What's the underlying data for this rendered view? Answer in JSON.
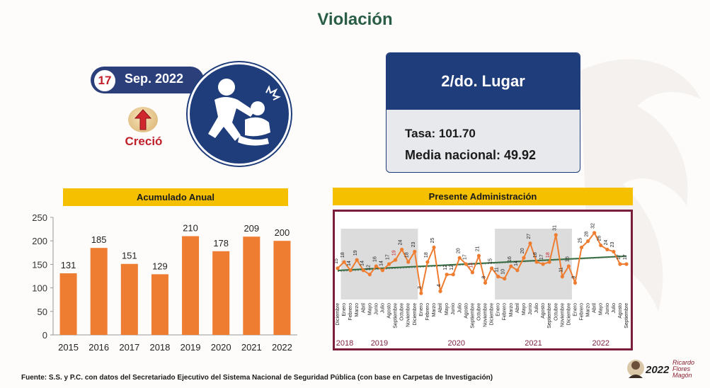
{
  "title": "Violación",
  "date_badge": {
    "day": "17",
    "month_year": "Sep. 2022"
  },
  "trend": {
    "label": "Creció",
    "arrow_icon": "up-arrow-icon"
  },
  "crime_icon": "assault-icon",
  "ranking": {
    "place": "2/do. Lugar",
    "tasa": "Tasa: 101.70",
    "media": "Media nacional: 49.92"
  },
  "annual_banner": "Acumulado Anual",
  "admin_banner": "Presente Administración",
  "source": "Fuente: S.S. y P.C. con datos del Secretariado Ejecutivo del Sistema Nacional de Seguridad Pública (con base en Carpetas de Investigación)",
  "logo": {
    "year": "2022",
    "name_line1": "Ricardo",
    "name_line2": "Flores",
    "name_line3": "Magón"
  },
  "colors": {
    "bar": "#ee7d31",
    "navy": "#1f3d7a",
    "gold": "#f5c000",
    "maroon": "#7a1e3c",
    "trend": "#2f6b3a",
    "title_green": "#2a5d45",
    "red": "#c0202a"
  },
  "chart_data": [
    {
      "type": "bar",
      "title": "Acumulado Anual",
      "categories": [
        "2015",
        "2016",
        "2017",
        "2018",
        "2019",
        "2020",
        "2021",
        "2022"
      ],
      "values": [
        131,
        185,
        151,
        129,
        210,
        178,
        209,
        200
      ],
      "ylim": [
        0,
        250
      ],
      "yticks": [
        0,
        50,
        100,
        150,
        200,
        250
      ],
      "grid": false
    },
    {
      "type": "line",
      "title": "Presente Administración",
      "x": [
        "Diciembre",
        "Enero",
        "Febrero",
        "Marzo",
        "Abril",
        "Mayo",
        "Junio",
        "Julio",
        "Agosto",
        "Septiembre",
        "Octubre",
        "Noviembre",
        "Diciembre",
        "Enero",
        "Febrero",
        "Marzo",
        "Abril",
        "Mayo",
        "Junio",
        "Julio",
        "Agosto",
        "Septiembre",
        "Octubre",
        "Noviembre",
        "Diciembre",
        "Enero",
        "Febrero",
        "Marzo",
        "Abril",
        "Mayo",
        "Junio",
        "Julio",
        "Agosto",
        "Septiembre",
        "Octubre",
        "Noviembre",
        "Diciembre",
        "Enero",
        "Febrero",
        "Marzo",
        "Abril",
        "Mayo",
        "Junio",
        "Julio",
        "Agosto",
        "Septiembre"
      ],
      "values": [
        15,
        18,
        14,
        19,
        14,
        12,
        16,
        14,
        17,
        19,
        24,
        18,
        23,
        3,
        18,
        25,
        4,
        12,
        12,
        20,
        17,
        13,
        21,
        8,
        15,
        11,
        10,
        16,
        14,
        20,
        27,
        18,
        17,
        18,
        31,
        11,
        16,
        8,
        25,
        28,
        32,
        26,
        24,
        23,
        17,
        17
      ],
      "highlight_indices": [
        9,
        21,
        33
      ],
      "year_labels": [
        "2018",
        "2019",
        "2020",
        "2021",
        "2022"
      ],
      "year_start_index": [
        0,
        1,
        13,
        25,
        37
      ],
      "shaded_years": [
        "2019",
        "2021"
      ],
      "ylim": [
        0,
        34
      ],
      "trend_line": true,
      "grid": false
    }
  ]
}
